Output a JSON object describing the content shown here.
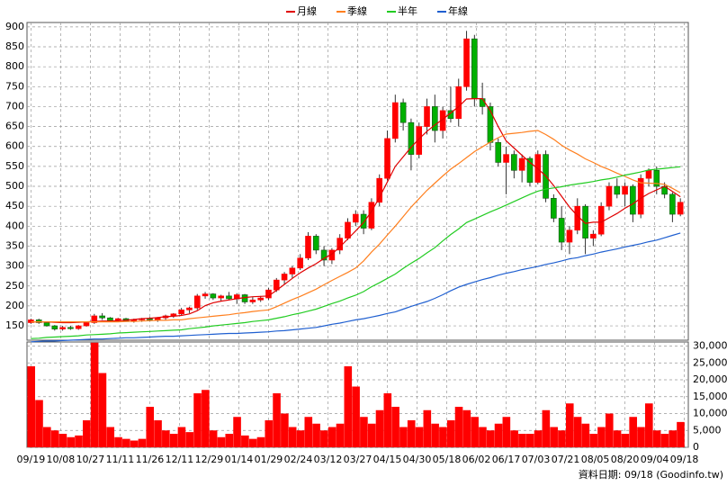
{
  "chart_data": [
    {
      "type": "candlestick",
      "legend": "top",
      "grid": true,
      "up_color": "#ff0000",
      "down_color": "#00b000",
      "xlim": [
        -2,
        332
      ],
      "ylim": [
        114,
        911
      ],
      "yticks": [
        150,
        200,
        250,
        300,
        350,
        400,
        450,
        500,
        550,
        600,
        650,
        700,
        750,
        800,
        850,
        900
      ],
      "x": [
        0,
        4,
        8,
        12,
        16,
        20,
        24,
        28,
        32,
        36,
        40,
        44,
        48,
        52,
        56,
        60,
        64,
        68,
        72,
        76,
        80,
        84,
        88,
        92,
        96,
        100,
        104,
        108,
        112,
        116,
        120,
        124,
        128,
        132,
        136,
        140,
        144,
        148,
        152,
        156,
        160,
        164,
        168,
        172,
        176,
        180,
        184,
        188,
        192,
        196,
        200,
        204,
        208,
        212,
        216,
        220,
        224,
        228,
        232,
        236,
        240,
        244,
        248,
        252,
        256,
        260,
        264,
        268,
        272,
        276,
        280,
        284,
        288,
        292,
        296,
        300,
        304,
        308,
        312,
        316,
        320,
        324,
        328
      ],
      "open": [
        158,
        165,
        158,
        150,
        142,
        146,
        143,
        150,
        158,
        175,
        170,
        163,
        168,
        162,
        165,
        168,
        165,
        170,
        175,
        180,
        190,
        195,
        225,
        230,
        220,
        225,
        218,
        228,
        210,
        215,
        220,
        240,
        265,
        280,
        295,
        320,
        375,
        340,
        315,
        340,
        370,
        410,
        430,
        395,
        460,
        520,
        620,
        710,
        660,
        580,
        650,
        700,
        640,
        690,
        670,
        750,
        870,
        720,
        700,
        610,
        560,
        580,
        540,
        570,
        510,
        580,
        470,
        420,
        360,
        390,
        450,
        370,
        380,
        450,
        500,
        480,
        500,
        430,
        520,
        540,
        500,
        480,
        430
      ],
      "high": [
        168,
        168,
        160,
        152,
        150,
        150,
        152,
        160,
        180,
        182,
        172,
        170,
        170,
        168,
        170,
        172,
        172,
        178,
        182,
        195,
        198,
        230,
        235,
        232,
        228,
        235,
        232,
        230,
        222,
        225,
        245,
        270,
        285,
        300,
        330,
        385,
        380,
        350,
        345,
        380,
        420,
        440,
        440,
        470,
        530,
        640,
        730,
        720,
        670,
        660,
        720,
        730,
        700,
        750,
        770,
        890,
        880,
        760,
        710,
        620,
        600,
        590,
        580,
        575,
        590,
        590,
        480,
        450,
        400,
        470,
        455,
        390,
        460,
        510,
        520,
        510,
        505,
        530,
        545,
        550,
        510,
        485,
        470
      ],
      "low": [
        155,
        155,
        148,
        138,
        138,
        140,
        140,
        148,
        155,
        165,
        160,
        160,
        160,
        158,
        160,
        162,
        160,
        165,
        170,
        175,
        182,
        190,
        218,
        215,
        212,
        215,
        205,
        205,
        205,
        210,
        215,
        235,
        255,
        270,
        290,
        315,
        330,
        300,
        305,
        330,
        365,
        400,
        380,
        390,
        450,
        515,
        610,
        640,
        540,
        570,
        630,
        610,
        620,
        660,
        650,
        740,
        700,
        680,
        590,
        550,
        480,
        520,
        510,
        500,
        505,
        460,
        410,
        340,
        330,
        380,
        330,
        350,
        375,
        440,
        470,
        450,
        410,
        420,
        500,
        480,
        470,
        410,
        425
      ],
      "close": [
        165,
        158,
        150,
        142,
        146,
        143,
        150,
        158,
        175,
        170,
        163,
        168,
        162,
        165,
        168,
        165,
        170,
        175,
        180,
        190,
        195,
        225,
        230,
        220,
        225,
        218,
        228,
        210,
        215,
        220,
        240,
        265,
        280,
        295,
        320,
        375,
        340,
        315,
        340,
        370,
        410,
        430,
        395,
        460,
        520,
        620,
        710,
        660,
        580,
        650,
        700,
        640,
        690,
        670,
        750,
        870,
        720,
        700,
        610,
        560,
        580,
        540,
        570,
        510,
        580,
        470,
        420,
        360,
        390,
        450,
        370,
        380,
        450,
        500,
        480,
        500,
        430,
        520,
        540,
        500,
        480,
        430,
        460
      ],
      "series": [
        {
          "name": "月線",
          "color": "#e00000",
          "values": [
            160,
            160,
            160,
            159,
            158,
            158,
            159,
            160,
            161,
            162,
            162,
            163,
            164,
            166,
            168,
            169,
            171,
            173,
            174,
            176,
            180,
            188,
            201,
            208,
            212,
            215,
            218,
            221,
            223,
            224,
            225,
            239,
            254,
            269,
            283,
            295,
            306,
            319,
            330,
            348,
            368,
            388,
            409,
            437,
            472,
            511,
            550,
            574,
            598,
            619,
            638,
            654,
            668,
            684,
            700,
            719,
            720,
            720,
            690,
            650,
            614,
            596,
            578,
            560,
            544,
            526,
            502,
            475,
            448,
            426,
            407,
            410,
            410,
            421,
            432,
            445,
            456,
            470,
            482,
            491,
            500,
            487,
            474
          ]
        },
        {
          "name": "季線",
          "color": "#ff7f1e",
          "values": [
            160,
            160,
            160,
            160,
            160,
            160,
            160,
            160,
            160,
            160,
            160,
            160,
            161,
            161,
            162,
            163,
            164,
            164,
            165,
            165,
            168,
            170,
            172,
            174,
            176,
            178,
            181,
            183,
            186,
            188,
            190,
            198,
            207,
            216,
            224,
            233,
            242,
            253,
            264,
            274,
            284,
            295,
            313,
            335,
            355,
            378,
            400,
            424,
            448,
            469,
            490,
            508,
            526,
            543,
            557,
            572,
            587,
            599,
            611,
            622,
            631,
            633,
            635,
            638,
            640,
            630,
            618,
            603,
            591,
            581,
            569,
            560,
            550,
            542,
            533,
            525,
            516,
            509,
            508,
            507,
            505,
            495,
            484
          ]
        },
        {
          "name": "半年",
          "color": "#22cc22",
          "values": [
            118,
            119,
            121,
            122,
            123,
            124,
            125,
            127,
            128,
            129,
            130,
            132,
            133,
            134,
            135,
            136,
            137,
            138,
            139,
            140,
            143,
            145,
            147,
            150,
            152,
            154,
            156,
            158,
            161,
            163,
            165,
            169,
            173,
            178,
            182,
            187,
            192,
            199,
            206,
            212,
            220,
            227,
            236,
            248,
            258,
            269,
            280,
            294,
            307,
            319,
            333,
            346,
            363,
            379,
            393,
            409,
            418,
            427,
            436,
            444,
            453,
            462,
            471,
            480,
            488,
            493,
            496,
            499,
            503,
            506,
            509,
            512,
            516,
            519,
            523,
            528,
            532,
            536,
            541,
            543,
            545,
            547,
            549
          ]
        },
        {
          "name": "年線",
          "color": "#1f5fd0",
          "values": [
            110,
            111,
            112,
            112,
            113,
            114,
            115,
            116,
            117,
            117,
            118,
            119,
            120,
            120,
            121,
            122,
            123,
            124,
            124,
            125,
            126,
            127,
            128,
            129,
            130,
            131,
            131,
            132,
            133,
            134,
            135,
            137,
            138,
            140,
            142,
            144,
            146,
            150,
            154,
            157,
            161,
            165,
            168,
            172,
            176,
            181,
            185,
            192,
            199,
            205,
            211,
            219,
            228,
            238,
            247,
            254,
            260,
            266,
            271,
            277,
            282,
            286,
            291,
            295,
            299,
            304,
            308,
            313,
            318,
            321,
            326,
            330,
            335,
            339,
            343,
            348,
            352,
            356,
            361,
            365,
            371,
            377,
            383
          ]
        }
      ]
    },
    {
      "type": "bar",
      "color": "#ff0000",
      "grid": true,
      "xlim": [
        -2,
        332
      ],
      "ylim": [
        0,
        31200
      ],
      "yticks": [
        0,
        {
          "value": 5000,
          "label": "5,000"
        },
        {
          "value": 10000,
          "label": "10,000"
        },
        {
          "value": 15000,
          "label": "15,000"
        },
        {
          "value": 20000,
          "label": "20,000"
        },
        {
          "value": 25000,
          "label": "25,000"
        },
        {
          "value": 30000,
          "label": "30,000"
        }
      ],
      "xticks": [
        {
          "value": 0,
          "label": "09/19"
        },
        {
          "value": 15,
          "label": "10/08"
        },
        {
          "value": 30,
          "label": "10/27"
        },
        {
          "value": 45,
          "label": "11/11"
        },
        {
          "value": 60,
          "label": "11/26"
        },
        {
          "value": 75,
          "label": "12/11"
        },
        {
          "value": 90,
          "label": "12/29"
        },
        {
          "value": 105,
          "label": "01/14"
        },
        {
          "value": 120,
          "label": "01/29"
        },
        {
          "value": 135,
          "label": "02/24"
        },
        {
          "value": 150,
          "label": "03/12"
        },
        {
          "value": 165,
          "label": "03/27"
        },
        {
          "value": 180,
          "label": "04/15"
        },
        {
          "value": 195,
          "label": "04/30"
        },
        {
          "value": 210,
          "label": "05/18"
        },
        {
          "value": 225,
          "label": "06/02"
        },
        {
          "value": 240,
          "label": "06/17"
        },
        {
          "value": 255,
          "label": "07/03"
        },
        {
          "value": 270,
          "label": "07/21"
        },
        {
          "value": 285,
          "label": "08/05"
        },
        {
          "value": 300,
          "label": "08/20"
        },
        {
          "value": 315,
          "label": "09/04"
        },
        {
          "value": 330,
          "label": "09/18"
        }
      ],
      "x": [
        0,
        4,
        8,
        12,
        16,
        20,
        24,
        28,
        32,
        36,
        40,
        44,
        48,
        52,
        56,
        60,
        64,
        68,
        72,
        76,
        80,
        84,
        88,
        92,
        96,
        100,
        104,
        108,
        112,
        116,
        120,
        124,
        128,
        132,
        136,
        140,
        144,
        148,
        152,
        156,
        160,
        164,
        168,
        172,
        176,
        180,
        184,
        188,
        192,
        196,
        200,
        204,
        208,
        212,
        216,
        220,
        224,
        228,
        232,
        236,
        240,
        244,
        248,
        252,
        256,
        260,
        264,
        268,
        272,
        276,
        280,
        284,
        288,
        292,
        296,
        300,
        304,
        308,
        312,
        316,
        320,
        324,
        328
      ],
      "values": [
        24000,
        14000,
        6000,
        5000,
        4000,
        3000,
        3500,
        8000,
        31000,
        22000,
        6000,
        3000,
        2500,
        2000,
        2500,
        12000,
        8000,
        5000,
        4000,
        6000,
        4500,
        16000,
        17000,
        5000,
        3000,
        4000,
        9000,
        3500,
        2500,
        3000,
        8000,
        16000,
        10000,
        6000,
        5000,
        9000,
        7000,
        5000,
        6000,
        7000,
        24000,
        18000,
        9000,
        7000,
        11000,
        16000,
        12000,
        6000,
        8000,
        6000,
        11000,
        7000,
        6000,
        8000,
        12000,
        11000,
        9000,
        6000,
        5000,
        7000,
        9000,
        5000,
        4000,
        4000,
        5000,
        11000,
        6000,
        5000,
        13000,
        9000,
        7000,
        4000,
        6000,
        10000,
        5000,
        4000,
        9000,
        6000,
        13000,
        5000,
        4000,
        5000,
        7500
      ],
      "footer": "資料日期: 09/18 (Goodinfo.tw)"
    }
  ]
}
